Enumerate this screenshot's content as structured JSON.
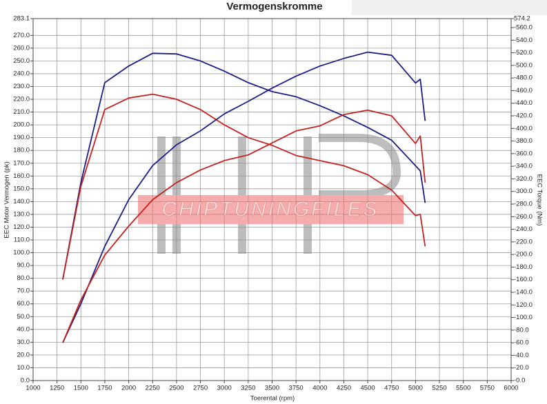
{
  "chart_data": {
    "type": "line",
    "title": "Vermogenskromme",
    "x_label": "Toerental (rpm)",
    "y_label": "EEC Motor Vermogen (pk)",
    "y2_label": "EEC Torque (Nm)",
    "watermark": "CHIPTUNINGFILES",
    "x": [
      1310,
      1500,
      1750,
      2000,
      2250,
      2500,
      2750,
      3000,
      3250,
      3500,
      3750,
      4000,
      4250,
      4500,
      4750,
      5000,
      5050,
      5100
    ],
    "series": [
      {
        "color": "#1c1c86",
        "values": [
          79,
          155,
          233,
          246,
          256,
          255.5,
          250,
          242,
          233,
          226,
          222,
          215,
          207,
          198,
          188,
          168,
          164,
          139
        ]
      },
      {
        "color": "#c4221f",
        "values": [
          79,
          152,
          212,
          221,
          224,
          220,
          212,
          200,
          190,
          184,
          176,
          172,
          168,
          161,
          149,
          129,
          130,
          105
        ]
      },
      {
        "color": "#1c1c86",
        "axis": "y2",
        "values": [
          60,
          122,
          213,
          287,
          341,
          374,
          396,
          423,
          443,
          464,
          483,
          499,
          511,
          521,
          516,
          472,
          478,
          412
        ]
      },
      {
        "color": "#c4221f",
        "axis": "y2",
        "values": [
          60,
          128,
          199,
          245,
          287,
          314,
          334,
          349,
          358,
          377,
          396,
          404,
          422,
          429,
          420,
          376,
          388,
          314
        ]
      }
    ],
    "xlim": [
      1000,
      6000
    ],
    "xticks": [
      1000,
      1250,
      1500,
      1750,
      2000,
      2250,
      2500,
      2750,
      3000,
      3250,
      3500,
      3750,
      4000,
      4250,
      4500,
      4750,
      5000,
      5250,
      5500,
      5750,
      6000
    ],
    "ylim": [
      0,
      283.1
    ],
    "yticks": [
      {
        "value": 0,
        "label": "0.0"
      },
      {
        "value": 10,
        "label": "10.0"
      },
      {
        "value": 20,
        "label": "20.0"
      },
      {
        "value": 30,
        "label": "30.0"
      },
      {
        "value": 40,
        "label": "40.0"
      },
      {
        "value": 50,
        "label": "50.0"
      },
      {
        "value": 60,
        "label": "60.0"
      },
      {
        "value": 70,
        "label": "70.0"
      },
      {
        "value": 80,
        "label": "80.0"
      },
      {
        "value": 90,
        "label": "90.0"
      },
      {
        "value": 100,
        "label": "100.0"
      },
      {
        "value": 110,
        "label": "110.0"
      },
      {
        "value": 120,
        "label": "120.0"
      },
      {
        "value": 130,
        "label": "130.0"
      },
      {
        "value": 140,
        "label": "140.0"
      },
      {
        "value": 150,
        "label": "150.0"
      },
      {
        "value": 160,
        "label": "160.0"
      },
      {
        "value": 170,
        "label": "170.0"
      },
      {
        "value": 180,
        "label": "180.0"
      },
      {
        "value": 190,
        "label": "190.0"
      },
      {
        "value": 200,
        "label": "200.0"
      },
      {
        "value": 210,
        "label": "210.0"
      },
      {
        "value": 220,
        "label": "220.0"
      },
      {
        "value": 230,
        "label": "230.0"
      },
      {
        "value": 240,
        "label": "240.0"
      },
      {
        "value": 250,
        "label": "250.0"
      },
      {
        "value": 260,
        "label": "260.0"
      },
      {
        "value": 270,
        "label": "270.0"
      },
      283.1
    ],
    "y2lim": [
      0,
      574.2
    ],
    "y2ticks": [
      {
        "value": 0,
        "label": "-0.0"
      },
      {
        "value": 20,
        "label": "-20.0"
      },
      {
        "value": 40,
        "label": "-40.0"
      },
      {
        "value": 60,
        "label": "-60.0"
      },
      {
        "value": 80,
        "label": "-80.0"
      },
      {
        "value": 100,
        "label": "-100.0"
      },
      {
        "value": 120,
        "label": "-120.0"
      },
      {
        "value": 140,
        "label": "-140.0"
      },
      {
        "value": 160,
        "label": "-160.0"
      },
      {
        "value": 180,
        "label": "-180.0"
      },
      {
        "value": 200,
        "label": "-200.0"
      },
      {
        "value": 220,
        "label": "-220.0"
      },
      {
        "value": 240,
        "label": "-240.0"
      },
      {
        "value": 260,
        "label": "-260.0"
      },
      {
        "value": 280,
        "label": "-280.0"
      },
      {
        "value": 300,
        "label": "-300.0"
      },
      {
        "value": 320,
        "label": "-320.0"
      },
      {
        "value": 340,
        "label": "-340.0"
      },
      {
        "value": 360,
        "label": "-360.0"
      },
      {
        "value": 380,
        "label": "-380.0"
      },
      {
        "value": 400,
        "label": "-400.0"
      },
      {
        "value": 420,
        "label": "-420.0"
      },
      {
        "value": 440,
        "label": "-440.0"
      },
      {
        "value": 460,
        "label": "-460.0"
      },
      {
        "value": 480,
        "label": "-480.0"
      },
      {
        "value": 500,
        "label": "-500.0"
      },
      {
        "value": 520,
        "label": "-520.0"
      },
      {
        "value": 540,
        "label": "-540.0"
      },
      {
        "value": 560,
        "label": "-560.0"
      },
      574.2
    ],
    "grid": true
  }
}
